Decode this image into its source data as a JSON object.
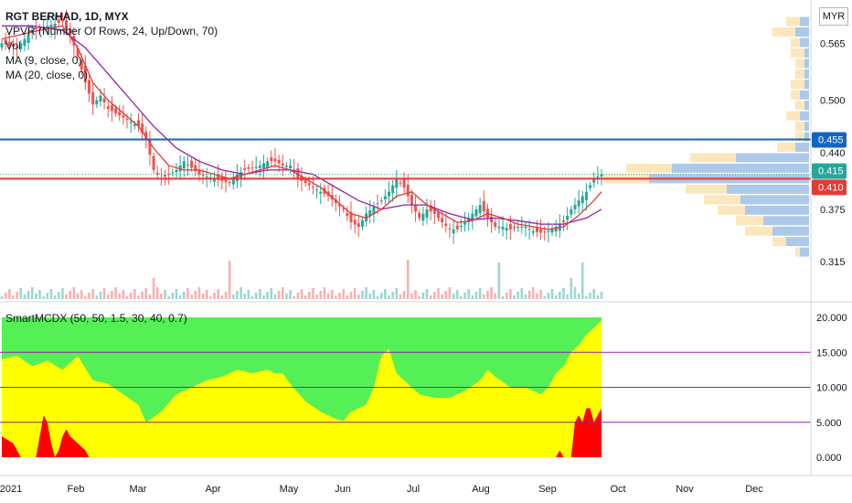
{
  "header": {
    "symbol_line": "RGT BERHAD, 1D, MYX",
    "indicators": [
      "VPVR (Number Of Rows, 24, Up/Down, 70)",
      "Vol",
      "MA (9, close, 0)",
      "MA (20, close, 0)"
    ],
    "currency": "MYR"
  },
  "oscillator": {
    "label": "SmartMCDX (50, 50, 1.5, 30, 40, 0.7)"
  },
  "colors": {
    "up": "#26a69a",
    "down": "#ef5350",
    "ma9": "#e53935",
    "ma20": "#8e24aa",
    "resistance": "#1565c0",
    "support": "#e53935",
    "osc_green": "#55f055",
    "osc_yellow": "#ffff00",
    "osc_red": "#ff0000",
    "osc_level": "#8e24aa"
  },
  "chart_data": [
    {
      "type": "candlestick",
      "title": "RGT BERHAD, 1D, MYX",
      "x_ticks": [
        "2021",
        "Feb",
        "Mar",
        "Apr",
        "May",
        "Jun",
        "Jul",
        "Aug",
        "Sep",
        "Oct",
        "Nov",
        "Dec"
      ],
      "y_ticks": [
        "0.565",
        "0.500",
        "0.440",
        "0.375",
        "0.315"
      ],
      "price_labels": [
        {
          "label": "0.455",
          "value": 0.455,
          "kind": "resistance-line"
        },
        {
          "label": "0.415",
          "value": 0.415,
          "kind": "last-price"
        },
        {
          "label": "0.410",
          "value": 0.41,
          "kind": "support-line"
        }
      ],
      "ylim": [
        0.29,
        0.6
      ],
      "close_series_points": [
        [
          0,
          0.565
        ],
        [
          4,
          0.56
        ],
        [
          8,
          0.58
        ],
        [
          12,
          0.585
        ],
        [
          16,
          0.59
        ],
        [
          18,
          0.575
        ],
        [
          20,
          0.55
        ],
        [
          22,
          0.52
        ],
        [
          24,
          0.495
        ],
        [
          26,
          0.505
        ],
        [
          28,
          0.49
        ],
        [
          32,
          0.48
        ],
        [
          36,
          0.47
        ],
        [
          38,
          0.455
        ],
        [
          40,
          0.42
        ],
        [
          42,
          0.41
        ],
        [
          46,
          0.42
        ],
        [
          48,
          0.43
        ],
        [
          52,
          0.415
        ],
        [
          56,
          0.41
        ],
        [
          60,
          0.405
        ],
        [
          62,
          0.415
        ],
        [
          64,
          0.42
        ],
        [
          68,
          0.425
        ],
        [
          70,
          0.43
        ],
        [
          72,
          0.43
        ],
        [
          74,
          0.425
        ],
        [
          76,
          0.425
        ],
        [
          78,
          0.41
        ],
        [
          82,
          0.4
        ],
        [
          86,
          0.39
        ],
        [
          90,
          0.375
        ],
        [
          92,
          0.36
        ],
        [
          94,
          0.355
        ],
        [
          96,
          0.37
        ],
        [
          100,
          0.385
        ],
        [
          102,
          0.395
        ],
        [
          104,
          0.41
        ],
        [
          106,
          0.4
        ],
        [
          108,
          0.38
        ],
        [
          110,
          0.365
        ],
        [
          112,
          0.375
        ],
        [
          114,
          0.37
        ],
        [
          116,
          0.36
        ],
        [
          118,
          0.352
        ],
        [
          120,
          0.352
        ],
        [
          122,
          0.36
        ],
        [
          124,
          0.37
        ],
        [
          126,
          0.38
        ],
        [
          128,
          0.365
        ],
        [
          130,
          0.355
        ],
        [
          132,
          0.355
        ],
        [
          134,
          0.352
        ],
        [
          136,
          0.355
        ],
        [
          138,
          0.355
        ],
        [
          140,
          0.35
        ],
        [
          142,
          0.348
        ],
        [
          144,
          0.35
        ],
        [
          146,
          0.355
        ],
        [
          148,
          0.36
        ],
        [
          150,
          0.375
        ],
        [
          152,
          0.385
        ],
        [
          154,
          0.395
        ],
        [
          156,
          0.41
        ],
        [
          158,
          0.415
        ]
      ],
      "ma9_points": [
        [
          0,
          0.57
        ],
        [
          10,
          0.58
        ],
        [
          16,
          0.585
        ],
        [
          20,
          0.56
        ],
        [
          24,
          0.52
        ],
        [
          28,
          0.5
        ],
        [
          32,
          0.485
        ],
        [
          36,
          0.47
        ],
        [
          40,
          0.445
        ],
        [
          44,
          0.425
        ],
        [
          48,
          0.42
        ],
        [
          52,
          0.42
        ],
        [
          56,
          0.415
        ],
        [
          60,
          0.41
        ],
        [
          64,
          0.415
        ],
        [
          68,
          0.42
        ],
        [
          72,
          0.425
        ],
        [
          76,
          0.42
        ],
        [
          80,
          0.41
        ],
        [
          84,
          0.4
        ],
        [
          88,
          0.385
        ],
        [
          92,
          0.37
        ],
        [
          96,
          0.365
        ],
        [
          100,
          0.375
        ],
        [
          104,
          0.39
        ],
        [
          108,
          0.395
        ],
        [
          112,
          0.38
        ],
        [
          116,
          0.37
        ],
        [
          120,
          0.36
        ],
        [
          124,
          0.362
        ],
        [
          128,
          0.37
        ],
        [
          132,
          0.365
        ],
        [
          136,
          0.358
        ],
        [
          140,
          0.355
        ],
        [
          144,
          0.352
        ],
        [
          148,
          0.355
        ],
        [
          152,
          0.368
        ],
        [
          156,
          0.385
        ],
        [
          158,
          0.395
        ]
      ],
      "ma20_points": [
        [
          0,
          0.585
        ],
        [
          8,
          0.585
        ],
        [
          16,
          0.58
        ],
        [
          22,
          0.56
        ],
        [
          28,
          0.53
        ],
        [
          34,
          0.5
        ],
        [
          40,
          0.47
        ],
        [
          46,
          0.445
        ],
        [
          52,
          0.43
        ],
        [
          58,
          0.42
        ],
        [
          64,
          0.415
        ],
        [
          70,
          0.42
        ],
        [
          76,
          0.42
        ],
        [
          82,
          0.415
        ],
        [
          88,
          0.4
        ],
        [
          94,
          0.385
        ],
        [
          100,
          0.375
        ],
        [
          106,
          0.38
        ],
        [
          112,
          0.38
        ],
        [
          118,
          0.37
        ],
        [
          124,
          0.363
        ],
        [
          130,
          0.365
        ],
        [
          136,
          0.362
        ],
        [
          142,
          0.358
        ],
        [
          148,
          0.358
        ],
        [
          154,
          0.365
        ],
        [
          158,
          0.375
        ]
      ]
    },
    {
      "type": "area",
      "title": "SmartMCDX (50, 50, 1.5, 30, 40, 0.7)",
      "y_ticks": [
        "20.000",
        "15.000",
        "10.000",
        "5.000",
        "0.000"
      ],
      "levels": [
        15,
        10,
        5
      ],
      "ylim": [
        0,
        20
      ],
      "top_series_points": [
        [
          0,
          20
        ],
        [
          158,
          20
        ]
      ],
      "yellow_series_points": [
        [
          0,
          14
        ],
        [
          4,
          14.5
        ],
        [
          8,
          13
        ],
        [
          12,
          13.8
        ],
        [
          16,
          12.5
        ],
        [
          20,
          14.5
        ],
        [
          24,
          11
        ],
        [
          28,
          10.5
        ],
        [
          32,
          9
        ],
        [
          36,
          7.5
        ],
        [
          38,
          5
        ],
        [
          42,
          6.5
        ],
        [
          46,
          9
        ],
        [
          50,
          10
        ],
        [
          54,
          11
        ],
        [
          58,
          11.5
        ],
        [
          62,
          12.5
        ],
        [
          66,
          12
        ],
        [
          70,
          12.5
        ],
        [
          72,
          12
        ],
        [
          74,
          12
        ],
        [
          76,
          10.5
        ],
        [
          80,
          8
        ],
        [
          84,
          6.5
        ],
        [
          88,
          5.5
        ],
        [
          90,
          5.2
        ],
        [
          92,
          6.5
        ],
        [
          96,
          7.5
        ],
        [
          98,
          10
        ],
        [
          100,
          14.5
        ],
        [
          102,
          15.5
        ],
        [
          104,
          12
        ],
        [
          106,
          11
        ],
        [
          110,
          9
        ],
        [
          114,
          8.5
        ],
        [
          118,
          8.5
        ],
        [
          122,
          9.5
        ],
        [
          126,
          11
        ],
        [
          128,
          12.5
        ],
        [
          130,
          11.5
        ],
        [
          134,
          10
        ],
        [
          138,
          10
        ],
        [
          140,
          9.5
        ],
        [
          142,
          9
        ],
        [
          144,
          10
        ],
        [
          146,
          12
        ],
        [
          148,
          13
        ],
        [
          150,
          15
        ],
        [
          152,
          16
        ],
        [
          154,
          17.5
        ],
        [
          156,
          18.5
        ],
        [
          158,
          19.5
        ]
      ],
      "red_series_points": [
        [
          0,
          3
        ],
        [
          3,
          2
        ],
        [
          4,
          1
        ],
        [
          5,
          0
        ],
        [
          9,
          0
        ],
        [
          10,
          3
        ],
        [
          11,
          6
        ],
        [
          12,
          5
        ],
        [
          13,
          2
        ],
        [
          14,
          0
        ],
        [
          15,
          1
        ],
        [
          16,
          3
        ],
        [
          17,
          4
        ],
        [
          18,
          3
        ],
        [
          20,
          2
        ],
        [
          22,
          1
        ],
        [
          23,
          0
        ],
        [
          146,
          0
        ],
        [
          147,
          1
        ],
        [
          148,
          0
        ],
        [
          150,
          0
        ],
        [
          151,
          5
        ],
        [
          152,
          6
        ],
        [
          153,
          5
        ],
        [
          154,
          7
        ],
        [
          155,
          7
        ],
        [
          156,
          5
        ],
        [
          157,
          6
        ],
        [
          158,
          7
        ]
      ]
    }
  ]
}
